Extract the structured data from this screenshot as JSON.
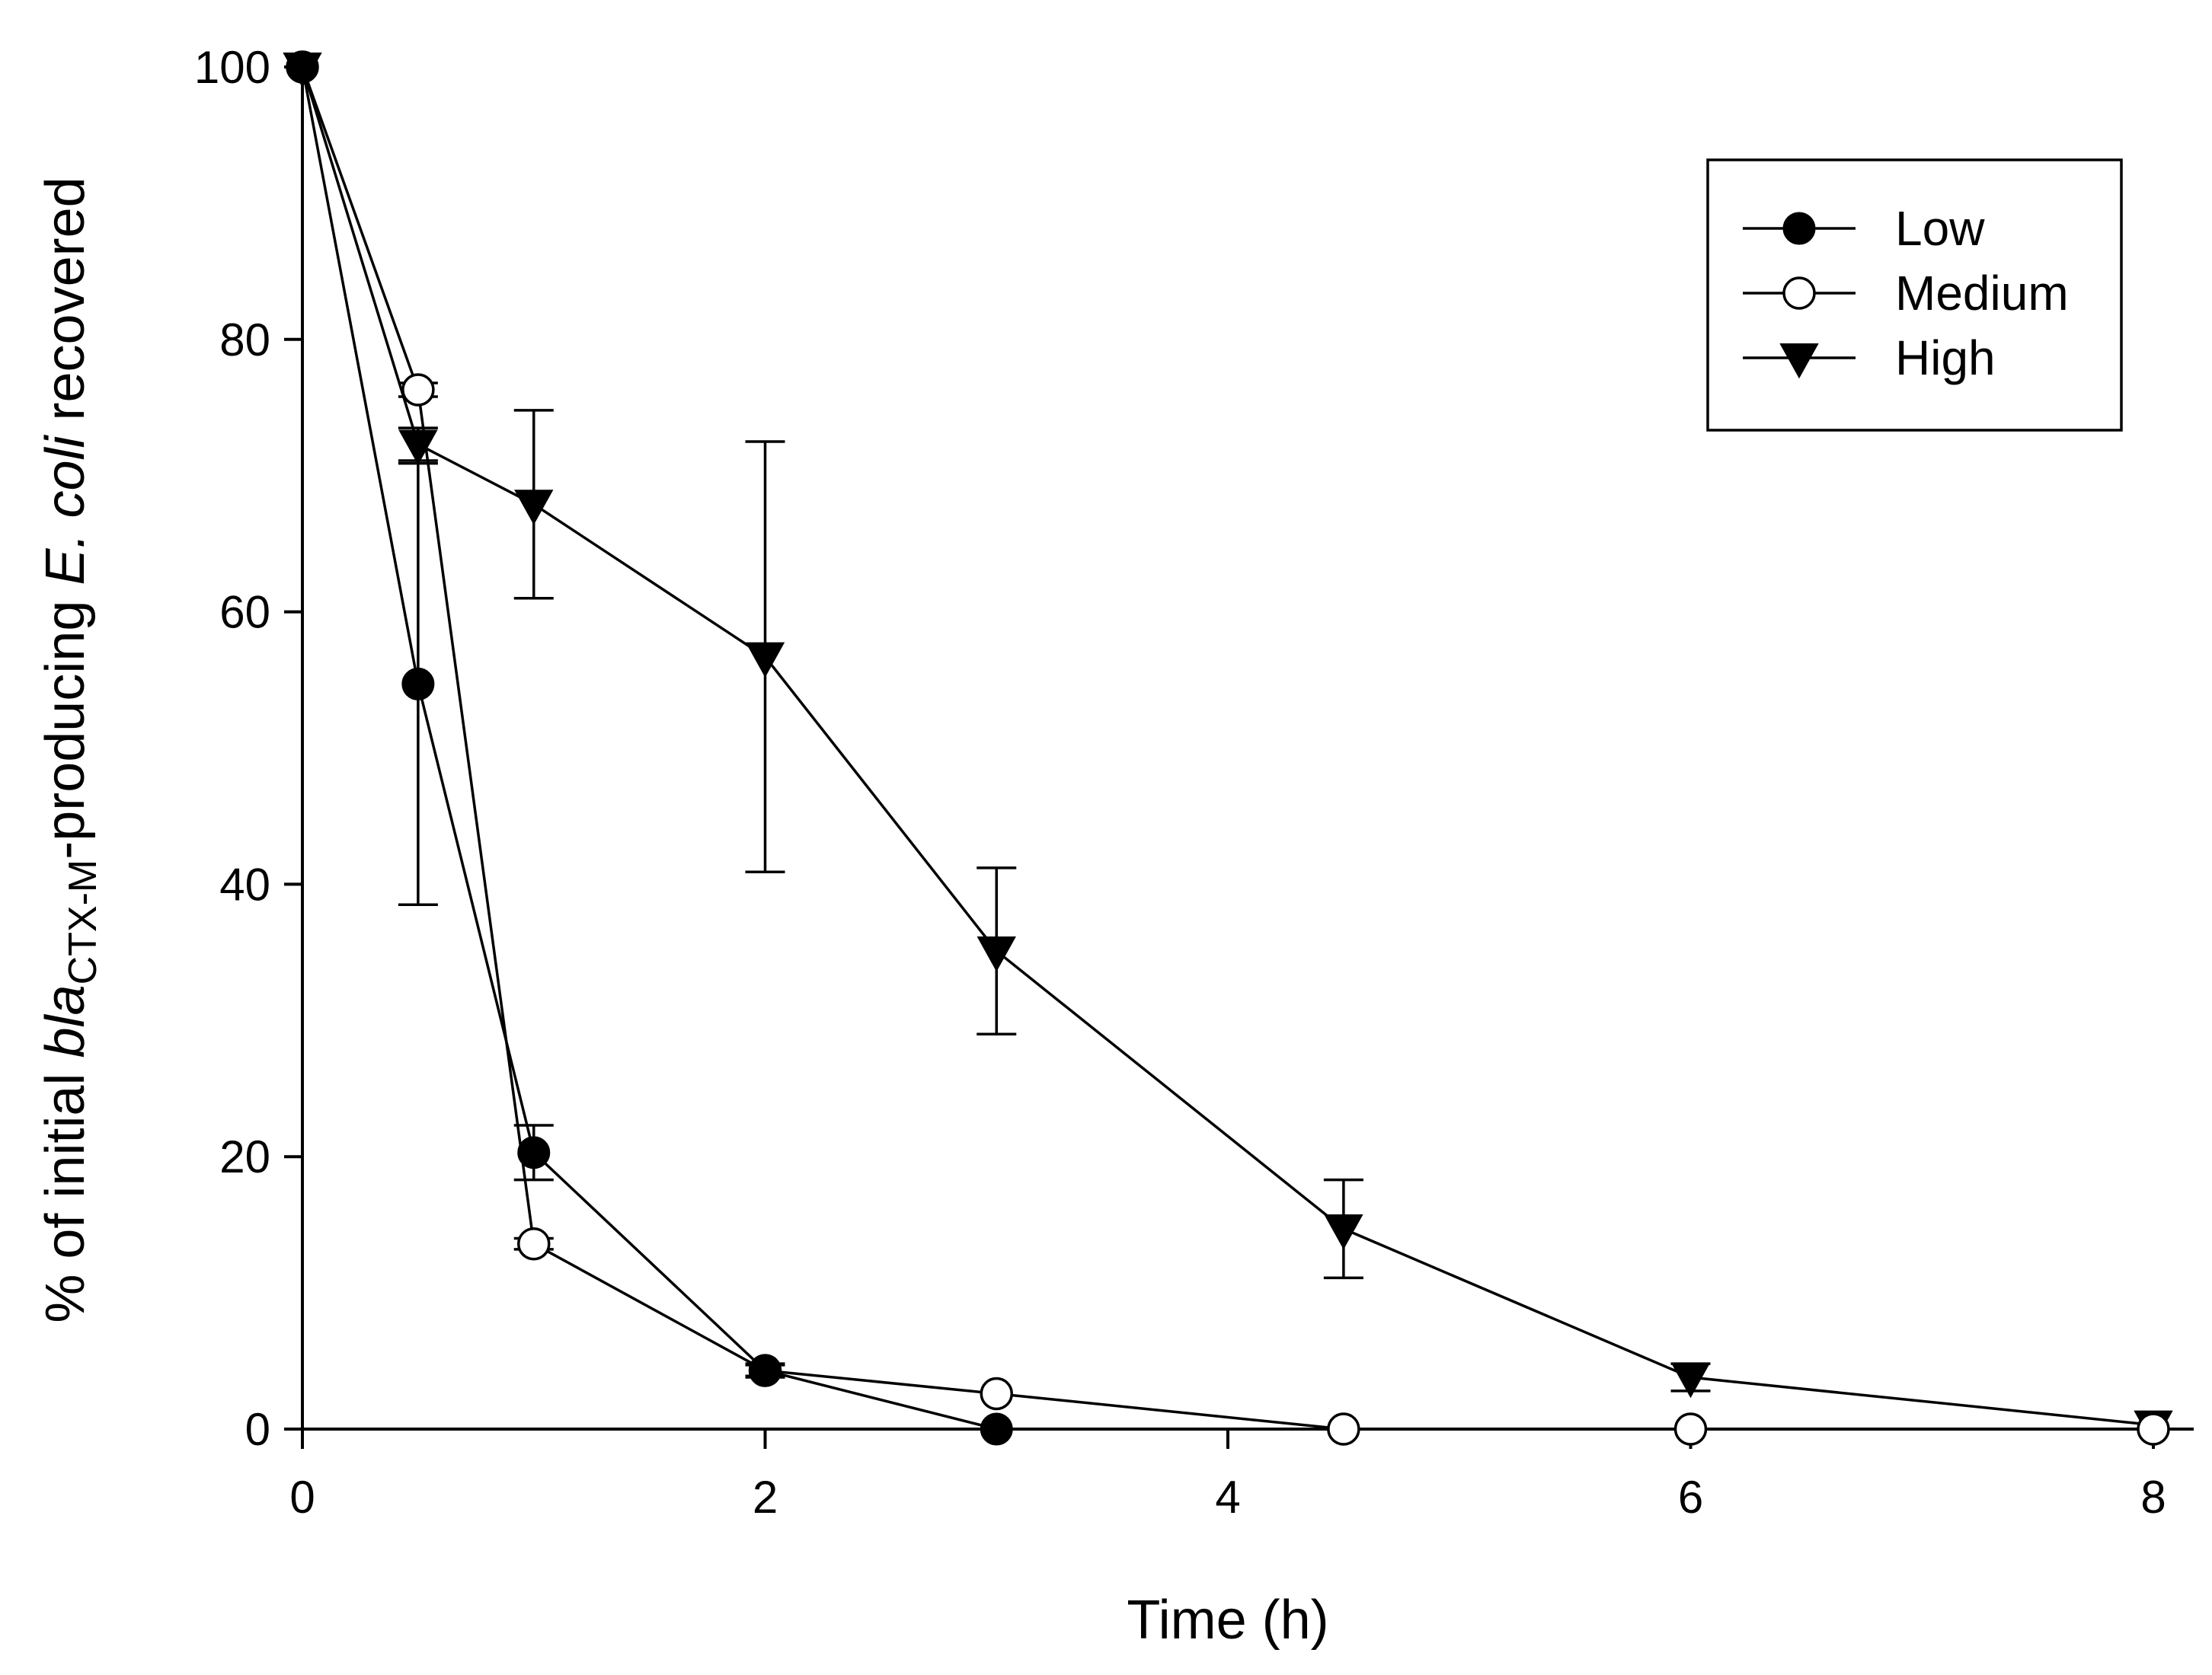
{
  "chart_data": {
    "type": "line",
    "title": "",
    "xlabel": "Time (h)",
    "ylabel": {
      "pre": "% of initial ",
      "italic1": "bla",
      "subscript": "CTX-M",
      "mid": "-producing ",
      "italic2": "E. coli",
      "post": " recovered"
    },
    "xlim": [
      0,
      8
    ],
    "ylim": [
      0,
      100
    ],
    "xticks": [
      "0",
      "2",
      "4",
      "6",
      "8"
    ],
    "yticks": [
      "0",
      "20",
      "40",
      "60",
      "80",
      "100"
    ],
    "grid": false,
    "legend_position": "top-right",
    "series": [
      {
        "name": "Low",
        "marker": "filled-circle",
        "x": [
          0,
          0.5,
          1,
          2,
          3
        ],
        "y": [
          100,
          54.7,
          20.3,
          4.3,
          0
        ],
        "err": [
          0,
          16.2,
          2.0,
          0.4,
          0
        ]
      },
      {
        "name": "Medium",
        "marker": "open-circle",
        "x": [
          0,
          0.5,
          1,
          2,
          3,
          4.5,
          6,
          8
        ],
        "y": [
          100,
          76.3,
          13.6,
          4.3,
          2.6,
          0,
          0,
          0
        ],
        "err": [
          0,
          0.5,
          0.4,
          0.5,
          0,
          0,
          0,
          0
        ]
      },
      {
        "name": "High",
        "marker": "filled-triangle-down",
        "x": [
          0,
          0.5,
          1,
          2,
          3,
          4.5,
          6,
          8
        ],
        "y": [
          100,
          72.3,
          67.9,
          56.7,
          35.1,
          14.7,
          3.8,
          0.3
        ],
        "err": [
          0,
          1.2,
          6.9,
          15.8,
          6.1,
          3.6,
          1.0,
          0
        ]
      }
    ]
  }
}
